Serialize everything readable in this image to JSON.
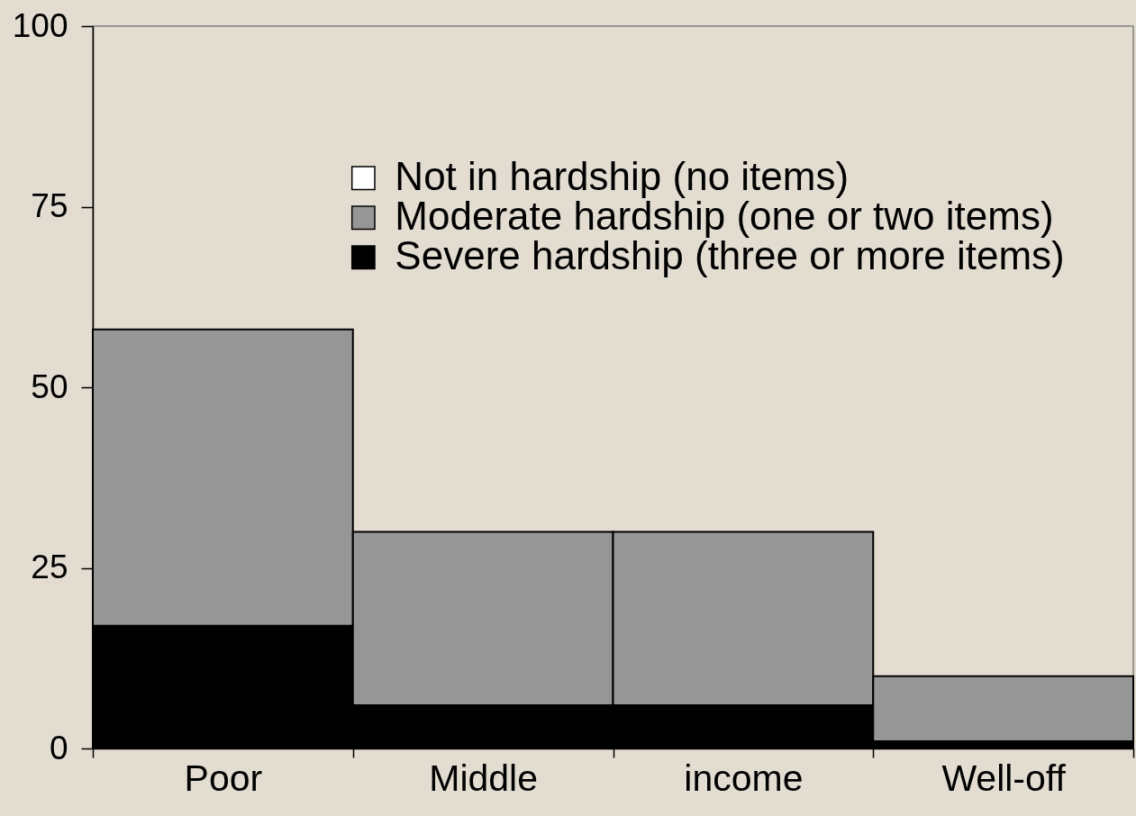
{
  "chart_data": {
    "type": "bar",
    "stacked": true,
    "categories": [
      "Poor",
      "Middle",
      "income",
      "Well-off"
    ],
    "series": [
      {
        "name": "Severe hardship (three or more items)",
        "color": "#000000",
        "values": [
          17,
          6,
          6,
          1
        ]
      },
      {
        "name": "Moderate hardship (one or two items)",
        "color": "#969696",
        "values": [
          41,
          24,
          24,
          9
        ]
      },
      {
        "name": "Not in hardship (no items)",
        "color": "#ffffff",
        "values": [
          null,
          null,
          null,
          null
        ]
      }
    ],
    "ylim": [
      0,
      100
    ],
    "yticks": [
      0,
      25,
      50,
      75,
      100
    ],
    "legend": "top right"
  }
}
